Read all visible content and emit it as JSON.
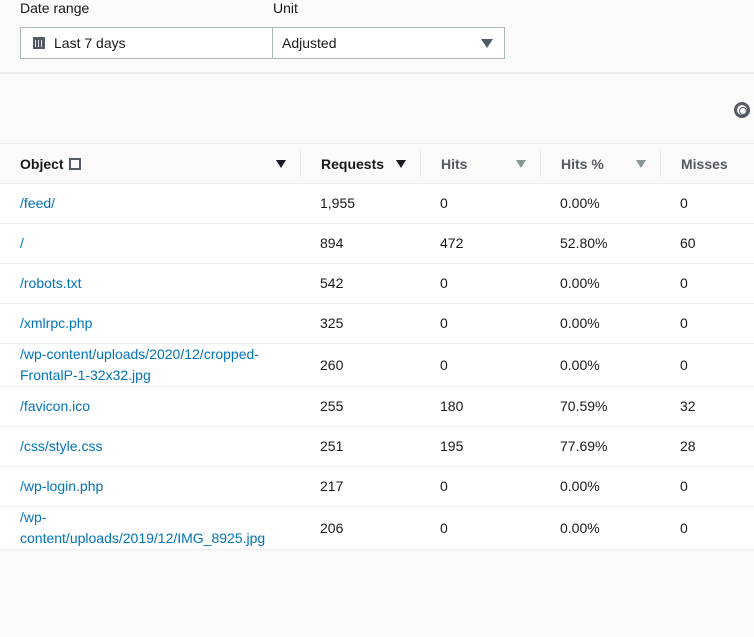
{
  "filters": {
    "date_label": "Date range",
    "date_value": "Last 7 days",
    "unit_label": "Unit",
    "unit_value": "Adjusted"
  },
  "table": {
    "columns": [
      "Object",
      "Requests",
      "Hits",
      "Hits %",
      "Misses"
    ],
    "sorted_by": "Requests",
    "rows": [
      {
        "object": "/feed/",
        "requests": "1,955",
        "hits": "0",
        "hits_pct": "0.00%",
        "misses": "0"
      },
      {
        "object": "/",
        "requests": "894",
        "hits": "472",
        "hits_pct": "52.80%",
        "misses": "60"
      },
      {
        "object": "/robots.txt",
        "requests": "542",
        "hits": "0",
        "hits_pct": "0.00%",
        "misses": "0"
      },
      {
        "object": "/xmlrpc.php",
        "requests": "325",
        "hits": "0",
        "hits_pct": "0.00%",
        "misses": "0"
      },
      {
        "object": "/wp-content/uploads/2020/12/cropped-FrontalP-1-32x32.jpg",
        "requests": "260",
        "hits": "0",
        "hits_pct": "0.00%",
        "misses": "0"
      },
      {
        "object": "/favicon.ico",
        "requests": "255",
        "hits": "180",
        "hits_pct": "70.59%",
        "misses": "32"
      },
      {
        "object": "/css/style.css",
        "requests": "251",
        "hits": "195",
        "hits_pct": "77.69%",
        "misses": "28"
      },
      {
        "object": "/wp-login.php",
        "requests": "217",
        "hits": "0",
        "hits_pct": "0.00%",
        "misses": "0"
      },
      {
        "object": "/wp-content/uploads/2019/12/IMG_8925.jpg",
        "requests": "206",
        "hits": "0",
        "hits_pct": "0.00%",
        "misses": "0"
      }
    ]
  }
}
